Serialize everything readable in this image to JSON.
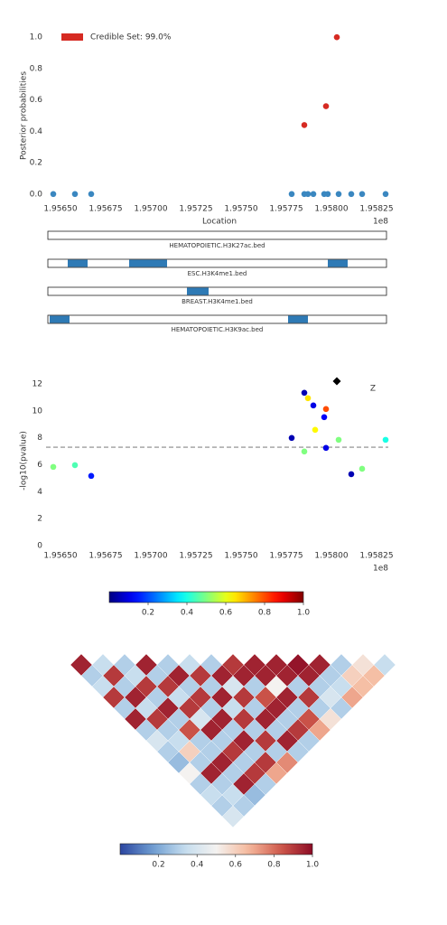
{
  "chart_data": [
    {
      "type": "scatter",
      "xlabel": "Location",
      "ylabel": "Posterior probabilities",
      "x_offset_label": "1e8",
      "xlim": [
        1.95642,
        1.95834
      ],
      "xticks": [
        {
          "value": 1.9565,
          "label": "1.95650"
        },
        1.95675,
        {
          "value": 1.957,
          "label": "1.95700"
        },
        1.95725,
        {
          "value": 1.9575,
          "label": "1.95750"
        },
        1.95775,
        {
          "value": 1.958,
          "label": "1.95800"
        },
        1.95825
      ],
      "ylim": [
        -0.03,
        1.03
      ],
      "yticks": [
        {
          "value": 0,
          "label": "0.0"
        },
        0.2,
        0.4,
        0.6,
        0.8,
        {
          "value": 1,
          "label": "1.0"
        }
      ],
      "legend": "upper left",
      "series": [
        {
          "color": "#3a87c0",
          "x": [
            1.95646,
            1.95658,
            1.95667,
            1.95778,
            1.95785,
            1.95787,
            1.9579,
            1.95796,
            1.95798,
            1.95804,
            1.95811,
            1.95817,
            1.9583
          ],
          "values": [
            0,
            0,
            0,
            0,
            0,
            0,
            0,
            0,
            0,
            0,
            0,
            0,
            0
          ]
        },
        {
          "name": "Credible Set: 99.0%",
          "color": "#d62a22",
          "x": [
            1.95785,
            1.95797,
            1.95803
          ],
          "values": [
            0.44,
            0.56,
            1.0
          ]
        }
      ]
    },
    {
      "type": "tracks",
      "xlim": [
        1.95642,
        1.95834
      ],
      "color": "#2e7ab5",
      "tracks": [
        {
          "name": "HEMATOPOIETIC.H3K27ac.bed",
          "intervals": []
        },
        {
          "name": "ESC.H3K4me1.bed",
          "intervals": [
            [
              1.95654,
              1.95665
            ],
            [
              1.95688,
              1.95709
            ],
            [
              1.95798,
              1.95809
            ]
          ]
        },
        {
          "name": "BREAST.H3K4me1.bed",
          "intervals": [
            [
              1.9572,
              1.95732
            ]
          ]
        },
        {
          "name": "HEMATOPOIETIC.H3K9ac.bed",
          "intervals": [
            [
              1.95644,
              1.95655
            ],
            [
              1.95776,
              1.95787
            ]
          ]
        }
      ]
    },
    {
      "type": "scatter",
      "ylabel": "-log10(pvalue)",
      "x_offset_label": "1e8",
      "annotation": "Z",
      "xlim": [
        1.95642,
        1.95834
      ],
      "xticks": [
        {
          "value": 1.9565,
          "label": "1.95650"
        },
        1.95675,
        {
          "value": 1.957,
          "label": "1.95700"
        },
        1.95725,
        {
          "value": 1.9575,
          "label": "1.95750"
        },
        1.95775,
        {
          "value": 1.958,
          "label": "1.95800"
        },
        1.95825
      ],
      "ylim": [
        0,
        12.6
      ],
      "yticks": [
        0,
        2,
        4,
        6,
        8,
        10,
        12
      ],
      "threshold": 7.3,
      "colormap": "jet",
      "clim": [
        0,
        1
      ],
      "cticks": [
        0.2,
        0.4,
        0.6,
        0.8,
        {
          "value": 1,
          "label": "1.0"
        }
      ],
      "x": [
        1.95646,
        1.95658,
        1.95667,
        1.95778,
        1.95785,
        1.95787,
        1.9579,
        1.95785,
        1.95791,
        1.95796,
        1.95797,
        1.95797,
        1.95804,
        1.95811,
        1.95817,
        1.9583
      ],
      "values": [
        5.84,
        5.97,
        5.17,
        7.99,
        11.34,
        10.94,
        10.4,
        6.98,
        8.59,
        9.53,
        10.13,
        7.25,
        7.85,
        5.3,
        5.7,
        7.85
      ],
      "ld": [
        0.5,
        0.45,
        0.15,
        0.05,
        0.05,
        0.65,
        0.1,
        0.5,
        0.63,
        0.12,
        0.8,
        0.1,
        0.5,
        0.05,
        0.5,
        0.4
      ],
      "lead": {
        "x": 1.95803,
        "y": 12.2,
        "color": "#000000"
      }
    },
    {
      "type": "heatmap",
      "colormap": "RdBu_r",
      "clim": [
        0,
        1
      ],
      "cticks": [
        0.2,
        0.4,
        0.6,
        0.8,
        {
          "value": 1,
          "label": "1.0"
        }
      ],
      "matrix": [
        [
          0.95,
          0.3,
          0.35,
          0.9,
          0.3,
          0.95,
          0.3,
          0.4,
          0.3,
          0.25,
          0.5,
          0.3,
          0.35,
          0.3,
          0.4
        ],
        [
          0.35,
          0.9,
          0.3,
          0.95,
          0.35,
          0.9,
          0.3,
          0.35,
          0.6,
          0.3,
          0.95,
          0.3,
          0.35,
          0.3
        ],
        [
          0.3,
          0.35,
          0.9,
          0.3,
          0.95,
          0.3,
          0.85,
          0.3,
          0.3,
          0.95,
          0.3,
          0.95,
          0.25
        ],
        [
          0.95,
          0.3,
          0.9,
          0.35,
          0.9,
          0.4,
          0.95,
          0.3,
          0.9,
          0.3,
          0.9,
          0.3
        ],
        [
          0.3,
          0.95,
          0.3,
          0.9,
          0.3,
          0.95,
          0.3,
          0.95,
          0.3,
          0.9,
          0.7
        ],
        [
          0.35,
          0.9,
          0.3,
          0.95,
          0.35,
          0.9,
          0.3,
          0.9,
          0.3,
          0.75
        ],
        [
          0.3,
          0.95,
          0.4,
          0.9,
          0.3,
          0.95,
          0.3,
          0.95,
          0.3
        ],
        [
          0.9,
          0.95,
          0.3,
          0.85,
          0.95,
          0.3,
          0.9,
          0.3
        ],
        [
          0.95,
          0.95,
          0.5,
          0.95,
          0.3,
          0.85,
          0.7
        ],
        [
          0.95,
          0.95,
          0.3,
          0.9,
          0.3,
          0.55
        ],
        [
          0.98,
          0.95,
          0.3,
          0.4,
          0.3
        ],
        [
          0.95,
          0.3,
          0.35,
          0.7
        ],
        [
          0.3,
          0.6,
          0.65
        ],
        [
          0.55,
          0.65
        ],
        [
          0.35
        ]
      ]
    }
  ]
}
